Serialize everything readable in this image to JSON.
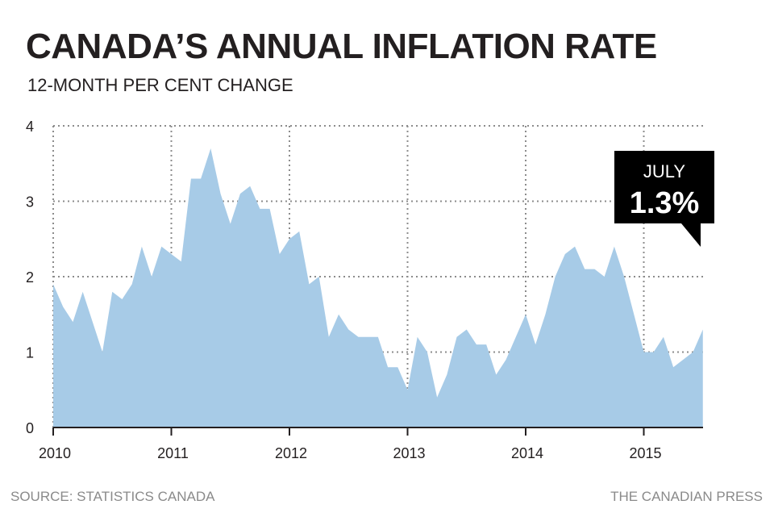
{
  "header": {
    "title": "CANADA’S ANNUAL INFLATION RATE",
    "subtitle": "12-MONTH PER CENT CHANGE"
  },
  "footer": {
    "source": "SOURCE: STATISTICS CANADA",
    "credit": "THE CANADIAN PRESS"
  },
  "callout": {
    "month": "JULY",
    "value": "1.3%"
  },
  "colors": {
    "area_fill": "#a7cbe7",
    "text": "#231f20",
    "callout_bg": "#000000",
    "footer_text": "#8a8a8a"
  },
  "chart_data": {
    "type": "area",
    "title": "CANADA’S ANNUAL INFLATION RATE",
    "subtitle": "12-MONTH PER CENT CHANGE",
    "xlabel": "",
    "ylabel": "",
    "x_start": "2010-01",
    "x_end": "2015-07",
    "x_ticks": [
      "2010",
      "2011",
      "2012",
      "2013",
      "2014",
      "2015"
    ],
    "y_ticks": [
      0,
      1,
      2,
      3,
      4
    ],
    "ylim": [
      0,
      4
    ],
    "grid": true,
    "x": [
      "2010-01",
      "2010-02",
      "2010-03",
      "2010-04",
      "2010-05",
      "2010-06",
      "2010-07",
      "2010-08",
      "2010-09",
      "2010-10",
      "2010-11",
      "2010-12",
      "2011-01",
      "2011-02",
      "2011-03",
      "2011-04",
      "2011-05",
      "2011-06",
      "2011-07",
      "2011-08",
      "2011-09",
      "2011-10",
      "2011-11",
      "2011-12",
      "2012-01",
      "2012-02",
      "2012-03",
      "2012-04",
      "2012-05",
      "2012-06",
      "2012-07",
      "2012-08",
      "2012-09",
      "2012-10",
      "2012-11",
      "2012-12",
      "2013-01",
      "2013-02",
      "2013-03",
      "2013-04",
      "2013-05",
      "2013-06",
      "2013-07",
      "2013-08",
      "2013-09",
      "2013-10",
      "2013-11",
      "2013-12",
      "2014-01",
      "2014-02",
      "2014-03",
      "2014-04",
      "2014-05",
      "2014-06",
      "2014-07",
      "2014-08",
      "2014-09",
      "2014-10",
      "2014-11",
      "2014-12",
      "2015-01",
      "2015-02",
      "2015-03",
      "2015-04",
      "2015-05",
      "2015-06",
      "2015-07"
    ],
    "values": [
      1.9,
      1.6,
      1.4,
      1.8,
      1.4,
      1.0,
      1.8,
      1.7,
      1.9,
      2.4,
      2.0,
      2.4,
      2.3,
      2.2,
      3.3,
      3.3,
      3.7,
      3.1,
      2.7,
      3.1,
      3.2,
      2.9,
      2.9,
      2.3,
      2.5,
      2.6,
      1.9,
      2.0,
      1.2,
      1.5,
      1.3,
      1.2,
      1.2,
      1.2,
      0.8,
      0.8,
      0.5,
      1.2,
      1.0,
      0.4,
      0.7,
      1.2,
      1.3,
      1.1,
      1.1,
      0.7,
      0.9,
      1.2,
      1.5,
      1.1,
      1.5,
      2.0,
      2.3,
      2.4,
      2.1,
      2.1,
      2.0,
      2.4,
      2.0,
      1.5,
      1.0,
      1.0,
      1.2,
      0.8,
      0.9,
      1.0,
      1.3
    ]
  }
}
